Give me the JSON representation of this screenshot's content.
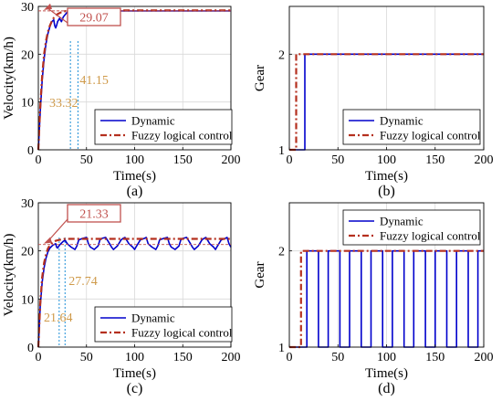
{
  "figure": {
    "legend": {
      "dynamic": "Dynamic",
      "fuzzy": "Fuzzy logical control"
    },
    "colors": {
      "dynamic": "#0000cc",
      "fuzzy": "#b5301f",
      "annot_box": "#c0504d",
      "annot_text": "#e39a4a",
      "marker_text": "#cf9a4a",
      "vline": "#1d8fd6"
    }
  },
  "chart_data": [
    {
      "id": "a",
      "type": "line",
      "panel_label": "(a)",
      "xlabel": "Time(s)",
      "ylabel": "Velocity(km/h)",
      "xlim": [
        0,
        200
      ],
      "ylim": [
        0,
        30
      ],
      "xticks": [
        "0",
        "50",
        "100",
        "150",
        "200"
      ],
      "yticks": [
        "0",
        "10",
        "20",
        "30"
      ],
      "grid": true,
      "legend_position": "lower-right",
      "series": [
        {
          "name": "Dynamic",
          "x": [
            0,
            2,
            4,
            6,
            8,
            10,
            12,
            14,
            16,
            17,
            18,
            19,
            20,
            22,
            24,
            26,
            28,
            30,
            33,
            36,
            40,
            45,
            50,
            60,
            80,
            100,
            150,
            200
          ],
          "y": [
            0,
            8,
            14.5,
            19,
            22.2,
            24.3,
            25.8,
            26.8,
            27.2,
            26,
            25.5,
            26,
            26.8,
            27.5,
            26.8,
            27.8,
            28.3,
            28.8,
            29.0,
            29.07,
            29.07,
            29.07,
            29.07,
            29.07,
            29.07,
            29.07,
            29.07,
            29.07
          ]
        },
        {
          "name": "Fuzzy logical control",
          "x": [
            0,
            2,
            4,
            6,
            8,
            10,
            12,
            14,
            16,
            18,
            20,
            24,
            28,
            32,
            36,
            40,
            45,
            50,
            60,
            80,
            100,
            150,
            200
          ],
          "y": [
            0,
            9,
            15.5,
            20,
            22.8,
            24.7,
            26,
            26.9,
            27.6,
            28,
            28.4,
            28.8,
            29.0,
            29.1,
            29.15,
            29.15,
            29.15,
            29.15,
            29.15,
            29.15,
            29.15,
            29.15,
            29.15
          ]
        }
      ],
      "annotations": {
        "callout": "29.07",
        "marker1": "33.32",
        "marker2": "41.15"
      },
      "marker_x": [
        33.32,
        41.15
      ]
    },
    {
      "id": "b",
      "type": "line",
      "panel_label": "(b)",
      "xlabel": "Time(s)",
      "ylabel": "Gear",
      "xlim": [
        0,
        200
      ],
      "ylim": [
        1,
        2.5
      ],
      "xticks": [
        "0",
        "50",
        "100",
        "150",
        "200"
      ],
      "yticks": [
        "1",
        "2"
      ],
      "grid": true,
      "legend_position": "lower-right",
      "series": [
        {
          "name": "Dynamic",
          "x": [
            0,
            16,
            16,
            200
          ],
          "y": [
            1,
            1,
            2,
            2
          ]
        },
        {
          "name": "Fuzzy logical control",
          "x": [
            0,
            7,
            7,
            200
          ],
          "y": [
            1,
            1,
            2,
            2
          ]
        }
      ]
    },
    {
      "id": "c",
      "type": "line",
      "panel_label": "(c)",
      "xlabel": "Time(s)",
      "ylabel": "Velocity(km/h)",
      "xlim": [
        0,
        200
      ],
      "ylim": [
        0,
        30
      ],
      "xticks": [
        "0",
        "50",
        "100",
        "150",
        "200"
      ],
      "yticks": [
        "0",
        "10",
        "20",
        "30"
      ],
      "grid": true,
      "legend_position": "lower-right",
      "series": [
        {
          "name": "Dynamic",
          "x": [
            0,
            2,
            4,
            6,
            8,
            10,
            12,
            14,
            16,
            18,
            19,
            20,
            22,
            24,
            26,
            28,
            30,
            34,
            38,
            40,
            42,
            46,
            50,
            52,
            54,
            58,
            62,
            64,
            66,
            70,
            74,
            76,
            78,
            82,
            86,
            88,
            90,
            94,
            98,
            100,
            102,
            106,
            110,
            112,
            114,
            118,
            122,
            124,
            126,
            130,
            134,
            136,
            138,
            142,
            146,
            148,
            150,
            154,
            158,
            160,
            162,
            166,
            170,
            172,
            174,
            178,
            182,
            184,
            186,
            190,
            194,
            196,
            198,
            200
          ],
          "y": [
            0,
            8.5,
            13.5,
            16.5,
            18.5,
            19.8,
            20.6,
            21,
            21.3,
            21.5,
            20.8,
            20.6,
            21.2,
            21.6,
            22,
            22.2,
            21.5,
            20.8,
            20.3,
            21,
            22.3,
            22.6,
            22.8,
            21.5,
            20.8,
            20.3,
            21,
            22.3,
            22.6,
            22.8,
            21.5,
            20.8,
            20.3,
            21,
            22.3,
            22.6,
            22.8,
            21.5,
            20.8,
            20.3,
            21,
            22.3,
            22.6,
            22.8,
            21.5,
            20.8,
            20.3,
            21,
            22.3,
            22.6,
            22.8,
            21.5,
            20.8,
            20.3,
            21,
            22.3,
            22.6,
            22.8,
            21.5,
            20.8,
            20.3,
            21,
            22.3,
            22.6,
            22.8,
            21.5,
            20.8,
            20.3,
            21,
            22.3,
            22.6,
            22.8,
            21.5,
            20.8
          ]
        },
        {
          "name": "Fuzzy logical control",
          "x": [
            0,
            2,
            4,
            6,
            8,
            10,
            12,
            14,
            16,
            18,
            20,
            22,
            24,
            26,
            28,
            30,
            35,
            40,
            50,
            100,
            150,
            200
          ],
          "y": [
            0,
            9,
            14.5,
            17.5,
            19.3,
            20.5,
            21.2,
            21.6,
            21.9,
            22.1,
            22.2,
            22.3,
            22.4,
            22.45,
            22.5,
            22.5,
            22.5,
            22.5,
            22.5,
            22.5,
            22.5,
            22.5
          ]
        }
      ],
      "annotations": {
        "callout": "21.33",
        "marker1": "21.64",
        "marker2": "27.74"
      },
      "marker_x": [
        21.64,
        27.74
      ]
    },
    {
      "id": "d",
      "type": "line",
      "panel_label": "(d)",
      "xlabel": "Time(s)",
      "ylabel": "Gear",
      "xlim": [
        0,
        200
      ],
      "ylim": [
        1,
        2.5
      ],
      "xticks": [
        "0",
        "50",
        "100",
        "150",
        "200"
      ],
      "yticks": [
        "1",
        "2"
      ],
      "grid": true,
      "legend_position": "top-right",
      "series": [
        {
          "name": "Dynamic",
          "x": [
            0,
            18,
            18,
            30,
            30,
            40,
            40,
            52,
            52,
            62,
            62,
            74,
            74,
            84,
            84,
            96,
            96,
            106,
            106,
            118,
            118,
            128,
            128,
            140,
            140,
            150,
            150,
            162,
            162,
            172,
            172,
            184,
            184,
            194,
            194,
            200
          ],
          "y": [
            1,
            1,
            2,
            2,
            1,
            1,
            2,
            2,
            1,
            1,
            2,
            2,
            1,
            1,
            2,
            2,
            1,
            1,
            2,
            2,
            1,
            1,
            2,
            2,
            1,
            1,
            2,
            2,
            1,
            1,
            2,
            2,
            1,
            1,
            2,
            2
          ]
        },
        {
          "name": "Fuzzy logical control",
          "x": [
            0,
            12,
            12,
            200
          ],
          "y": [
            1,
            1,
            2,
            2
          ]
        }
      ]
    }
  ]
}
